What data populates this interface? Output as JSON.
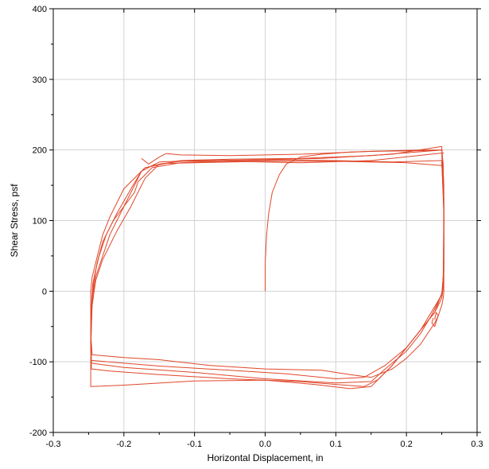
{
  "chart_data": {
    "type": "line",
    "title": "",
    "xlabel": "Horizontal Displacement, in",
    "ylabel": "Shear Stress, psf",
    "xlim": [
      -0.3,
      0.3
    ],
    "ylim": [
      -200,
      400
    ],
    "xticks": [
      -0.3,
      -0.2,
      -0.1,
      0.0,
      0.1,
      0.2,
      0.3
    ],
    "xtick_labels": [
      "-0.3",
      "-0.2",
      "-0.1",
      "0.0",
      "0.1",
      "0.2",
      "0.3"
    ],
    "yticks": [
      -200,
      -100,
      0,
      100,
      200,
      300,
      400
    ],
    "ytick_labels": [
      "-200",
      "-100",
      "0",
      "100",
      "200",
      "300",
      "400"
    ],
    "grid": true,
    "legend": "none",
    "line_color": "#e0472a",
    "series": [
      {
        "x": [
          0.0,
          0.0,
          0.002,
          0.005,
          0.01,
          0.02,
          0.03,
          0.05,
          0.08,
          0.12,
          0.18,
          0.22,
          0.25
        ],
        "y": [
          0,
          40,
          80,
          110,
          140,
          165,
          180,
          190,
          194,
          197,
          199,
          200,
          200
        ]
      },
      {
        "x": [
          0.25,
          0.252,
          0.253,
          0.253,
          0.253,
          0.252,
          0.25,
          0.245,
          0.24,
          0.23,
          0.22,
          0.2,
          0.18,
          0.16,
          0.15,
          0.12,
          0.08,
          0.0,
          -0.08,
          -0.15,
          -0.2,
          -0.245,
          -0.247,
          -0.247,
          -0.245,
          -0.24,
          -0.235,
          -0.23,
          -0.22,
          -0.2,
          -0.17,
          -0.12,
          -0.05,
          0.05,
          0.15,
          0.25
        ],
        "y": [
          200,
          180,
          120,
          50,
          0,
          -10,
          -20,
          -35,
          -45,
          -60,
          -75,
          -95,
          -110,
          -118,
          -122,
          -118,
          -112,
          -110,
          -105,
          -97,
          -94,
          -90,
          -60,
          0,
          20,
          40,
          60,
          80,
          105,
          145,
          175,
          185,
          187,
          188,
          192,
          200
        ]
      },
      {
        "x": [
          0.25,
          0.253,
          0.253,
          0.252,
          0.25,
          0.24,
          0.22,
          0.2,
          0.17,
          0.14,
          0.1,
          0.03,
          -0.05,
          -0.15,
          -0.2,
          -0.246,
          -0.247,
          -0.246,
          -0.244,
          -0.24,
          -0.235,
          -0.225,
          -0.21,
          -0.19,
          -0.175,
          -0.15,
          -0.1,
          -0.02,
          0.08,
          0.18,
          0.25
        ],
        "y": [
          205,
          150,
          60,
          5,
          -10,
          -30,
          -55,
          -80,
          -105,
          -122,
          -124,
          -117,
          -112,
          -106,
          -102,
          -98,
          -70,
          -20,
          10,
          30,
          50,
          80,
          110,
          145,
          170,
          183,
          185,
          186,
          188,
          194,
          205
        ]
      },
      {
        "x": [
          0.25,
          0.253,
          0.253,
          0.25,
          0.235,
          0.22,
          0.2,
          0.17,
          0.15,
          0.1,
          0.0,
          -0.1,
          -0.2,
          -0.246,
          -0.247,
          -0.245,
          -0.24,
          -0.23,
          -0.22,
          -0.205,
          -0.19,
          -0.175,
          -0.16,
          -0.14,
          -0.1,
          0.0,
          0.1,
          0.2,
          0.25
        ],
        "y": [
          182,
          120,
          30,
          -5,
          -35,
          -60,
          -85,
          -110,
          -128,
          -130,
          -124,
          -115,
          -108,
          -102,
          -75,
          -10,
          20,
          50,
          80,
          110,
          140,
          170,
          178,
          181,
          182,
          184,
          184,
          182,
          178
        ]
      },
      {
        "x": [
          0.25,
          0.253,
          0.252,
          0.25,
          0.235,
          0.22,
          0.2,
          0.18,
          0.16,
          0.14,
          0.1,
          0.05,
          -0.05,
          -0.15,
          -0.22,
          -0.246,
          -0.247,
          -0.245,
          -0.24,
          -0.23,
          -0.21,
          -0.19,
          -0.17,
          -0.15,
          -0.12,
          -0.06,
          0.02,
          0.1,
          0.18,
          0.25
        ],
        "y": [
          185,
          110,
          20,
          -5,
          -30,
          -55,
          -80,
          -105,
          -125,
          -135,
          -132,
          -128,
          -124,
          -118,
          -113,
          -110,
          -80,
          -20,
          15,
          45,
          85,
          120,
          160,
          180,
          184,
          184,
          186,
          185,
          183,
          185
        ]
      },
      {
        "x": [
          0.25,
          0.253,
          0.253,
          0.251,
          0.24,
          0.22,
          0.2,
          0.18,
          0.16,
          0.15,
          0.12,
          0.07,
          0.0,
          -0.1,
          -0.2,
          -0.247,
          -0.247,
          -0.246,
          -0.243,
          -0.238,
          -0.23,
          -0.215,
          -0.2,
          -0.185,
          -0.18,
          -0.16,
          -0.12,
          -0.05,
          0.05,
          0.15,
          0.253
        ],
        "y": [
          196,
          130,
          40,
          0,
          -30,
          -55,
          -80,
          -105,
          -125,
          -135,
          -138,
          -132,
          -126,
          -127,
          -133,
          -135,
          -100,
          -30,
          10,
          40,
          70,
          100,
          120,
          140,
          155,
          175,
          182,
          184,
          182,
          185,
          196
        ]
      },
      {
        "x": [
          -0.175,
          -0.165,
          -0.15,
          -0.14,
          -0.12,
          -0.05,
          0.05,
          0.15,
          0.22,
          0.25
        ],
        "y": [
          188,
          180,
          190,
          195,
          193,
          192,
          194,
          198,
          199,
          200
        ]
      },
      {
        "x": [
          0.24,
          0.242,
          0.245,
          0.24,
          0.236,
          0.238
        ],
        "y": [
          -40,
          -30,
          -35,
          -50,
          -45,
          -38
        ]
      }
    ]
  }
}
